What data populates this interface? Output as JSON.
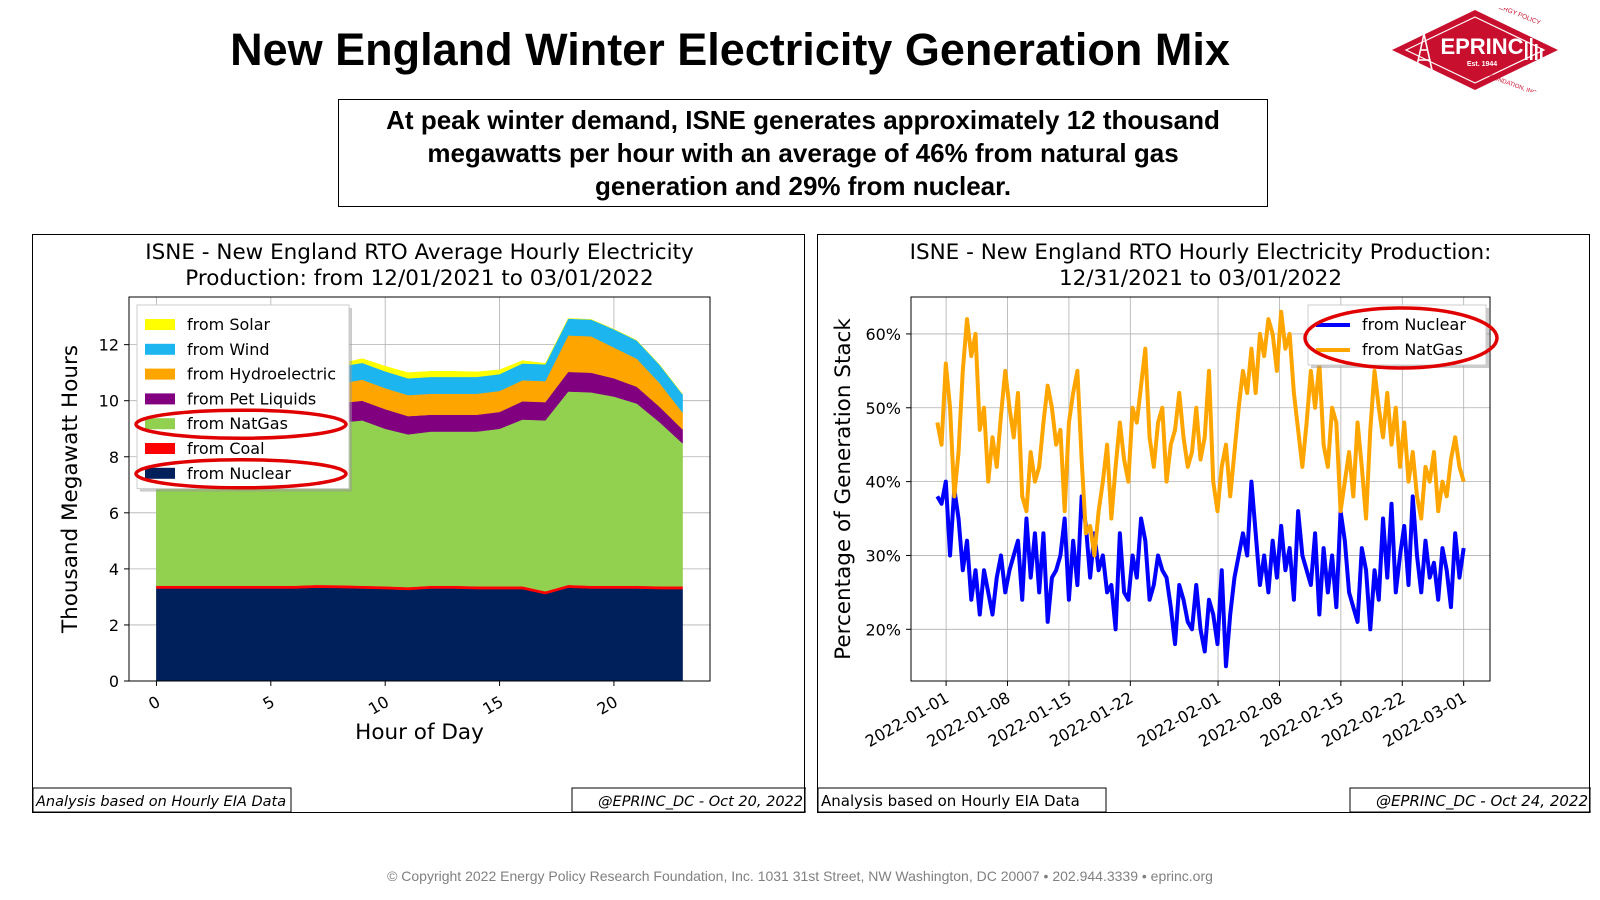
{
  "page": {
    "title": "New England Winter Electricity Generation Mix",
    "summary": "At peak winter demand, ISNE generates approximately 12 thousand megawatts per hour with an average of 46% from natural gas generation and 29% from nuclear.",
    "footer": "© Copyright 2022 Energy Policy Research Foundation, Inc. 1031 31st Street, NW Washington, DC 20007 • 202.944.3339 • eprinc.org"
  },
  "logo": {
    "name": "EPRINC",
    "est": "Est. 1944",
    "arc_top": "ENERGY POLICY",
    "arc_bottom": "RESEARCH FOUNDATION, INC.",
    "color": "#C8102E"
  },
  "chart_data": [
    {
      "type": "area",
      "stacked": true,
      "title": "ISNE - New England RTO Average Hourly Electricity Production: from 12/01/2021 to 03/01/2022",
      "title_lines": [
        "ISNE - New England RTO Average Hourly Electricity",
        "Production: from 12/01/2021 to 03/01/2022"
      ],
      "xlabel": "Hour of Day",
      "ylabel": "Thousand Megawatt Hours",
      "xlim": [
        -1.2,
        24.2
      ],
      "ylim": [
        0,
        13.7
      ],
      "xticks": [
        0,
        5,
        10,
        15,
        20
      ],
      "yticks": [
        0,
        2,
        4,
        6,
        8,
        10,
        12
      ],
      "grid": true,
      "legend_position": "upper-left",
      "x": [
        0,
        1,
        2,
        3,
        4,
        5,
        6,
        7,
        8,
        9,
        10,
        11,
        12,
        13,
        14,
        15,
        16,
        17,
        18,
        19,
        20,
        21,
        22,
        23
      ],
      "series": [
        {
          "name": "from Nuclear",
          "color": "#00205B",
          "values": [
            3.3,
            3.3,
            3.3,
            3.3,
            3.3,
            3.3,
            3.3,
            3.33,
            3.32,
            3.3,
            3.28,
            3.25,
            3.3,
            3.3,
            3.28,
            3.28,
            3.28,
            3.1,
            3.33,
            3.3,
            3.3,
            3.3,
            3.28,
            3.28
          ]
        },
        {
          "name": "from Coal",
          "color": "#FF0000",
          "values": [
            0.1,
            0.1,
            0.1,
            0.1,
            0.1,
            0.1,
            0.1,
            0.1,
            0.1,
            0.1,
            0.1,
            0.1,
            0.1,
            0.1,
            0.1,
            0.1,
            0.1,
            0.1,
            0.1,
            0.1,
            0.1,
            0.1,
            0.1,
            0.1
          ]
        },
        {
          "name": "from NatGas",
          "color": "#92D050",
          "values": [
            4.6,
            4.6,
            4.7,
            4.9,
            5.1,
            5.3,
            5.5,
            5.7,
            5.8,
            5.9,
            5.62,
            5.45,
            5.5,
            5.5,
            5.52,
            5.62,
            5.95,
            6.1,
            6.9,
            6.9,
            6.75,
            6.5,
            5.85,
            5.1
          ]
        },
        {
          "name": "from Pet Liquids",
          "color": "#800080",
          "values": [
            0.5,
            0.5,
            0.5,
            0.5,
            0.5,
            0.5,
            0.55,
            0.6,
            0.7,
            0.7,
            0.7,
            0.65,
            0.6,
            0.6,
            0.6,
            0.6,
            0.65,
            0.65,
            0.7,
            0.7,
            0.65,
            0.6,
            0.55,
            0.5
          ]
        },
        {
          "name": "from Hydroelectric",
          "color": "#FFA500",
          "values": [
            0.6,
            0.6,
            0.6,
            0.6,
            0.6,
            0.6,
            0.6,
            0.6,
            0.7,
            0.75,
            0.75,
            0.75,
            0.75,
            0.75,
            0.75,
            0.75,
            0.75,
            0.75,
            1.3,
            1.3,
            1.1,
            1.0,
            0.85,
            0.6
          ]
        },
        {
          "name": "from Wind",
          "color": "#1CB5F0",
          "values": [
            0.5,
            0.5,
            0.5,
            0.5,
            0.5,
            0.5,
            0.5,
            0.6,
            0.6,
            0.6,
            0.6,
            0.6,
            0.6,
            0.6,
            0.6,
            0.6,
            0.6,
            0.6,
            0.6,
            0.6,
            0.65,
            0.65,
            0.65,
            0.65
          ]
        },
        {
          "name": "from Solar",
          "color": "#FFFF00",
          "values": [
            0,
            0,
            0,
            0,
            0,
            0,
            0,
            0.05,
            0.1,
            0.15,
            0.18,
            0.2,
            0.2,
            0.2,
            0.18,
            0.15,
            0.1,
            0.03,
            0,
            0,
            0,
            0,
            0,
            0
          ]
        }
      ],
      "highlighted_legend": [
        "from NatGas",
        "from Nuclear"
      ],
      "note_left": "Analysis based on Hourly EIA Data",
      "note_right": "@EPRINC_DC - Oct 20, 2022"
    },
    {
      "type": "line",
      "title": "ISNE - New England RTO Hourly Electricity Production: 12/31/2021 to 03/01/2022",
      "title_lines": [
        "ISNE - New England RTO Hourly Electricity Production:",
        "12/31/2021 to 03/01/2022"
      ],
      "ylabel": "Percentage of Generation Stack",
      "xlabel": "",
      "x_start": "2021-12-31",
      "x_end": "2022-03-01",
      "xticks": [
        "2022-01-01",
        "2022-01-08",
        "2022-01-15",
        "2022-01-22",
        "2022-02-01",
        "2022-02-08",
        "2022-02-15",
        "2022-02-22",
        "2022-03-01"
      ],
      "yticks": [
        "20%",
        "30%",
        "40%",
        "50%",
        "60%"
      ],
      "ylim": [
        13,
        65
      ],
      "grid": true,
      "legend_position": "upper-right",
      "series": [
        {
          "name": "from Nuclear",
          "color": "#0000FF",
          "values": [
            38,
            37,
            40,
            30,
            39,
            35,
            28,
            32,
            24,
            28,
            22,
            28,
            25,
            22,
            27,
            30,
            25,
            28,
            30,
            32,
            24,
            35,
            27,
            33,
            25,
            33,
            21,
            27,
            28,
            30,
            35,
            24,
            32,
            26,
            38,
            34,
            27,
            33,
            28,
            30,
            25,
            26,
            20,
            33,
            25,
            24,
            30,
            27,
            35,
            32,
            24,
            26,
            30,
            28,
            27,
            23,
            18,
            26,
            24,
            21,
            20,
            26,
            20,
            17,
            24,
            22,
            18,
            28,
            15,
            22,
            27,
            30,
            33,
            30,
            40,
            33,
            26,
            30,
            25,
            32,
            27,
            34,
            28,
            31,
            24,
            36,
            30,
            28,
            26,
            33,
            22,
            31,
            25,
            30,
            23,
            36,
            32,
            25,
            23,
            21,
            31,
            28,
            20,
            28,
            24,
            35,
            27,
            37,
            25,
            30,
            34,
            26,
            38,
            30,
            25,
            32,
            27,
            29,
            24,
            31,
            28,
            23,
            33,
            27,
            31
          ]
        },
        {
          "name": "from NatGas",
          "color": "#FFA500",
          "values": [
            48,
            45,
            56,
            50,
            38,
            44,
            55,
            62,
            57,
            60,
            47,
            50,
            40,
            46,
            42,
            49,
            55,
            50,
            46,
            52,
            38,
            36,
            44,
            40,
            42,
            48,
            53,
            50,
            45,
            47,
            36,
            48,
            52,
            55,
            43,
            33,
            34,
            30,
            36,
            40,
            45,
            35,
            42,
            48,
            43,
            40,
            50,
            48,
            53,
            58,
            46,
            42,
            48,
            50,
            40,
            45,
            47,
            52,
            46,
            42,
            44,
            50,
            43,
            46,
            55,
            40,
            36,
            42,
            45,
            38,
            44,
            50,
            55,
            52,
            58,
            52,
            60,
            57,
            62,
            60,
            55,
            63,
            58,
            60,
            52,
            47,
            42,
            48,
            55,
            50,
            56,
            45,
            42,
            50,
            48,
            36,
            40,
            44,
            38,
            48,
            42,
            35,
            47,
            55,
            50,
            46,
            52,
            45,
            50,
            42,
            48,
            40,
            44,
            38,
            35,
            42,
            40,
            44,
            36,
            40,
            38,
            43,
            46,
            42,
            40
          ]
        }
      ],
      "highlighted_legend": [
        "from Nuclear",
        "from NatGas"
      ],
      "note_left": "Analysis based on Hourly EIA Data",
      "note_right": "@EPRINC_DC - Oct 24, 2022"
    }
  ]
}
